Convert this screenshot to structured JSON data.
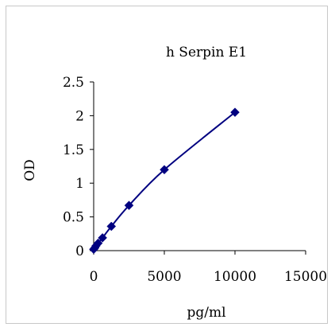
{
  "chart_data": {
    "type": "scatter",
    "title": "h Serpin E1",
    "xlabel": "pg/ml",
    "ylabel": "OD",
    "xlim": [
      0,
      15000
    ],
    "ylim": [
      0,
      2.5
    ],
    "xticks": [
      0,
      5000,
      10000,
      15000
    ],
    "yticks": [
      0,
      0.5,
      1,
      1.5,
      2,
      2.5
    ],
    "xtick_labels": [
      "0",
      "5000",
      "10000",
      "15000"
    ],
    "ytick_labels": [
      "0",
      "0.5",
      "1",
      "1.5",
      "2",
      "2.5"
    ],
    "grid": false,
    "legend": "none",
    "marker_color": "#000080",
    "line_color": "#000080",
    "series": [
      {
        "x": [
          0,
          78,
          156,
          312,
          625,
          1250,
          2500,
          5000,
          10000
        ],
        "y": [
          0.02,
          0.04,
          0.07,
          0.11,
          0.19,
          0.36,
          0.67,
          1.2,
          2.05
        ]
      }
    ]
  }
}
